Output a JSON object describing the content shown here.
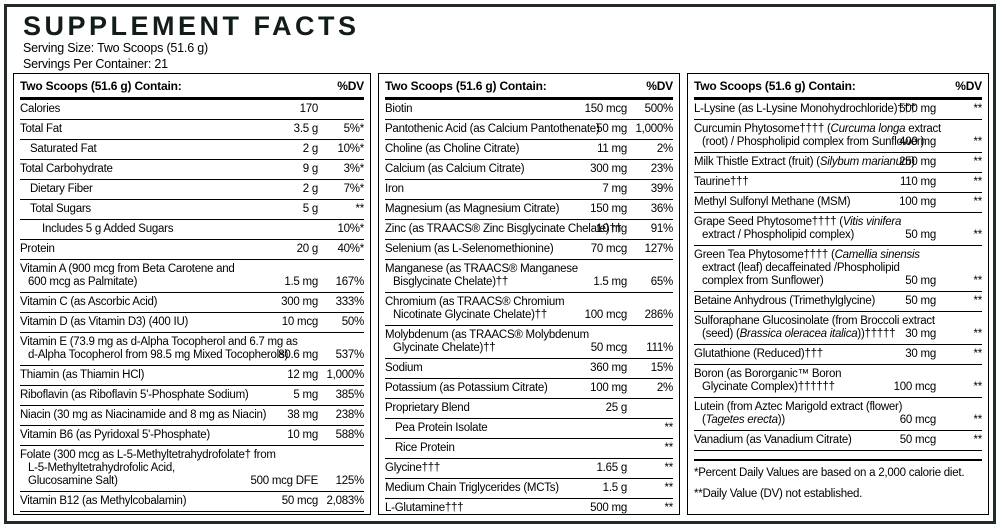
{
  "header": {
    "title": "SUPPLEMENT FACTS",
    "serving_size": "Serving Size: Two Scoops (51.6 g)",
    "servings_per_container": "Servings Per Container: 21"
  },
  "colors": {
    "outer_border": "#212c27",
    "rule": "#000000",
    "text": "#000000",
    "background": "#ffffff"
  },
  "columns": [
    {
      "header": {
        "label": "Two Scoops (51.6 g) Contain:",
        "dv": "%DV"
      },
      "rows": [
        {
          "name": "Calories",
          "amount": "170",
          "dv": "",
          "indent": 0
        },
        {
          "name": "Total Fat",
          "amount": "3.5 g",
          "dv": "5%*",
          "indent": 0
        },
        {
          "name": "Saturated Fat",
          "amount": "2 g",
          "dv": "10%*",
          "indent": 1
        },
        {
          "name": "Total Carbohydrate",
          "amount": "9 g",
          "dv": "3%*",
          "indent": 0
        },
        {
          "name": "Dietary Fiber",
          "amount": "2 g",
          "dv": "7%*",
          "indent": 1
        },
        {
          "name": "Total Sugars",
          "amount": "5 g",
          "dv": "**",
          "indent": 1
        },
        {
          "name": "Includes 5 g Added Sugars",
          "amount": "",
          "dv": "10%*",
          "indent": 2
        },
        {
          "name": "Protein",
          "amount": "20 g",
          "dv": "40%*",
          "indent": 0
        },
        {
          "name": "Vitamin A (900 mcg from Beta Carotene and\n600 mcg as Palmitate)",
          "amount": "1.5 mg",
          "dv": "167%",
          "indent": 0
        },
        {
          "name": "Vitamin C (as Ascorbic Acid)",
          "amount": "300 mg",
          "dv": "333%",
          "indent": 0
        },
        {
          "name": "Vitamin D (as Vitamin D3) (400 IU)",
          "amount": "10 mcg",
          "dv": "50%",
          "indent": 0
        },
        {
          "name": "Vitamin E (73.9 mg as d-Alpha Tocopherol and 6.7 mg as\nd-Alpha Tocopherol from 98.5 mg Mixed Tocopherols)",
          "amount": "80.6 mg",
          "dv": "537%",
          "indent": 0
        },
        {
          "name": "Thiamin (as Thiamin HCl)",
          "amount": "12 mg",
          "dv": "1,000%",
          "indent": 0
        },
        {
          "name": "Riboflavin (as Riboflavin 5'-Phosphate Sodium)",
          "amount": "5 mg",
          "dv": "385%",
          "indent": 0
        },
        {
          "name": "Niacin (30 mg as Niacinamide and 8 mg as Niacin)",
          "amount": "38 mg",
          "dv": "238%",
          "indent": 0
        },
        {
          "name": "Vitamin B6 (as Pyridoxal 5'-Phosphate)",
          "amount": "10 mg",
          "dv": "588%",
          "indent": 0
        },
        {
          "name": "Folate (300 mcg as L-5-Methyltetrahydrofolate† from\nL-5-Methyltetrahydrofolic Acid,\nGlucosamine Salt)",
          "amount": "500 mcg DFE",
          "dv": "125%",
          "indent": 0
        },
        {
          "name": "Vitamin B12 (as Methylcobalamin)",
          "amount": "50 mcg",
          "dv": "2,083%",
          "indent": 0
        }
      ]
    },
    {
      "header": {
        "label": "Two Scoops (51.6 g) Contain:",
        "dv": "%DV"
      },
      "rows": [
        {
          "name": "Biotin",
          "amount": "150 mcg",
          "dv": "500%",
          "indent": 0
        },
        {
          "name": "Pantothenic Acid (as Calcium Pantothenate)",
          "amount": "50 mg",
          "dv": "1,000%",
          "indent": 0
        },
        {
          "name": "Choline (as Choline Citrate)",
          "amount": "11 mg",
          "dv": "2%",
          "indent": 0
        },
        {
          "name": "Calcium (as Calcium Citrate)",
          "amount": "300 mg",
          "dv": "23%",
          "indent": 0
        },
        {
          "name": "Iron",
          "amount": "7 mg",
          "dv": "39%",
          "indent": 0
        },
        {
          "name": "Magnesium (as Magnesium Citrate)",
          "amount": "150 mg",
          "dv": "36%",
          "indent": 0
        },
        {
          "name": "Zinc (as TRAACS® Zinc Bisglycinate Chelate)††",
          "amount": "10 mg",
          "dv": "91%",
          "indent": 0
        },
        {
          "name": "Selenium (as L-Selenomethionine)",
          "amount": "70 mcg",
          "dv": "127%",
          "indent": 0
        },
        {
          "name": "Manganese (as TRAACS® Manganese\nBisglycinate Chelate)††",
          "amount": "1.5 mg",
          "dv": "65%",
          "indent": 0
        },
        {
          "name": "Chromium (as TRAACS® Chromium\nNicotinate Glycinate Chelate)††",
          "amount": "100 mcg",
          "dv": "286%",
          "indent": 0
        },
        {
          "name": "Molybdenum (as TRAACS® Molybdenum\nGlycinate Chelate)††",
          "amount": "50 mcg",
          "dv": "111%",
          "indent": 0
        },
        {
          "name": "Sodium",
          "amount": "360 mg",
          "dv": "15%",
          "indent": 0
        },
        {
          "name": "Potassium (as Potassium Citrate)",
          "amount": "100 mg",
          "dv": "2%",
          "indent": 0
        },
        {
          "name": "Proprietary Blend",
          "amount": "25 g",
          "dv": "",
          "indent": 0
        },
        {
          "name": "Pea Protein Isolate",
          "amount": "",
          "dv": "**",
          "indent": 1
        },
        {
          "name": "Rice Protein",
          "amount": "",
          "dv": "**",
          "indent": 1
        },
        {
          "name": "Glycine†††",
          "amount": "1.65 g",
          "dv": "**",
          "indent": 0
        },
        {
          "name": "Medium Chain Triglycerides (MCTs)",
          "amount": "1.5 g",
          "dv": "**",
          "indent": 0
        },
        {
          "name": "L-Glutamine†††",
          "amount": "500 mg",
          "dv": "**",
          "indent": 0
        }
      ]
    },
    {
      "header": {
        "label": "Two Scoops (51.6 g) Contain:",
        "dv": "%DV"
      },
      "rows": [
        {
          "name": "L-Lysine (as L-Lysine Monohydrochloride)†††",
          "amount": "500 mg",
          "dv": "**",
          "indent": 0
        },
        {
          "name": "Curcumin Phytosome†††† (<i>Curcuma longa</i> extract\n(root) / Phospholipid complex from Sunflower)",
          "amount": "400 mg",
          "dv": "**",
          "indent": 0
        },
        {
          "name": "Milk Thistle Extract (fruit) (<i>Silybum marianum</i>)",
          "amount": "250 mg",
          "dv": "**",
          "indent": 0
        },
        {
          "name": "Taurine†††",
          "amount": "110 mg",
          "dv": "**",
          "indent": 0
        },
        {
          "name": "Methyl Sulfonyl Methane (MSM)",
          "amount": "100 mg",
          "dv": "**",
          "indent": 0
        },
        {
          "name": "Grape Seed Phytosome†††† (<i>Vitis vinifera</i>\nextract / Phospholipid complex)",
          "amount": "50 mg",
          "dv": "**",
          "indent": 0
        },
        {
          "name": "Green Tea Phytosome†††† (<i>Camellia sinensis</i>\nextract (leaf) decaffeinated /Phospholipid\ncomplex from Sunflower)",
          "amount": "50 mg",
          "dv": "**",
          "indent": 0
        },
        {
          "name": "Betaine Anhydrous (Trimethylglycine)",
          "amount": "50 mg",
          "dv": "**",
          "indent": 0
        },
        {
          "name": "Sulforaphane Glucosinolate (from Broccoli extract\n(seed) (<i>Brassica oleracea italica</i>))†††††",
          "amount": "30 mg",
          "dv": "**",
          "indent": 0
        },
        {
          "name": "Glutathione (Reduced)†††",
          "amount": "30 mg",
          "dv": "**",
          "indent": 0
        },
        {
          "name": "Boron (as Bororganic™ Boron\nGlycinate Complex)††††††",
          "amount": "100 mcg",
          "dv": "**",
          "indent": 0
        },
        {
          "name": "Lutein (from Aztec Marigold extract (flower)\n(<i>Tagetes erecta</i>))",
          "amount": "60 mcg",
          "dv": "**",
          "indent": 0
        },
        {
          "name": "Vanadium (as Vanadium Citrate)",
          "amount": "50 mcg",
          "dv": "**",
          "indent": 0
        }
      ]
    }
  ],
  "footnotes": [
    "*Percent Daily Values are based on a 2,000 calorie diet.",
    "**Daily Value (DV) not established."
  ]
}
